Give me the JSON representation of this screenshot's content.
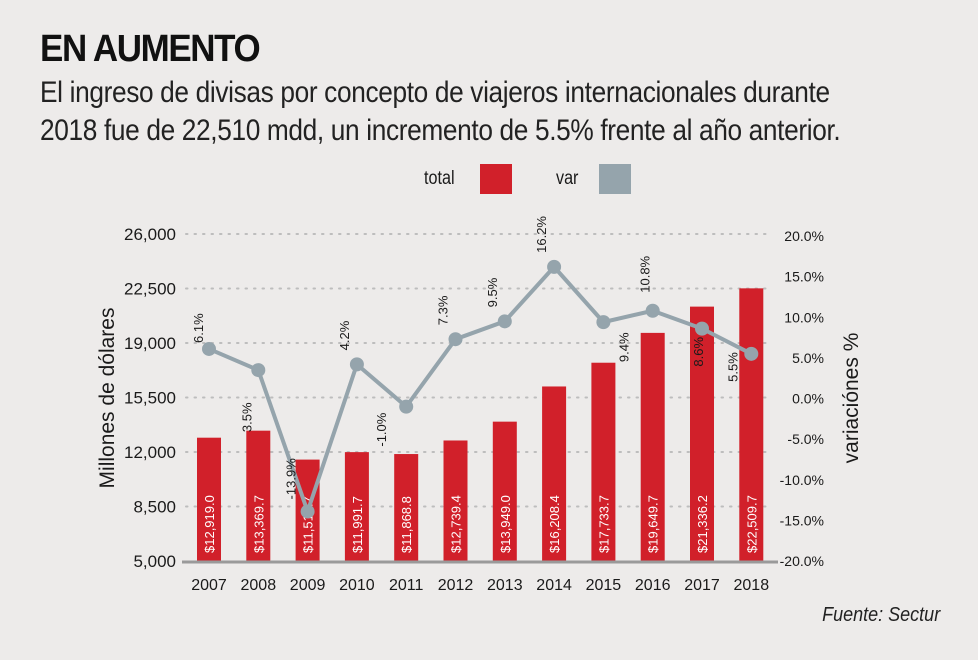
{
  "header": {
    "title": "EN AUMENTO",
    "subtitle_line1": "El ingreso de divisas por concepto de viajeros internacionales durante",
    "subtitle_line2": "2018 fue de 22,510 mdd, un incremento de 5.5% frente al año anterior."
  },
  "legend": {
    "items": [
      {
        "label": "total",
        "color": "#d1202a"
      },
      {
        "label": "var",
        "color": "#95a4ac"
      }
    ]
  },
  "source": "Fuente: Sectur",
  "colors": {
    "bar": "#d1202a",
    "line": "#95a4ac",
    "grid": "#bdbdbd",
    "baseline": "#9a9a9a",
    "bar_label": "#ffffff",
    "text": "#1a1a1a"
  },
  "chart_data": {
    "type": "bar",
    "title": "EN AUMENTO",
    "xlabel": "",
    "ylabel": "Millones de dólares",
    "y2label": "variaciónes %",
    "categories": [
      "2007",
      "2008",
      "2009",
      "2010",
      "2011",
      "2012",
      "2013",
      "2014",
      "2015",
      "2016",
      "2017",
      "2018"
    ],
    "ylim": [
      5000,
      26000
    ],
    "yticks": [
      5000,
      8500,
      12000,
      15500,
      19000,
      22500,
      26000
    ],
    "ytick_labels": [
      "5,000",
      "8,500",
      "12,000",
      "15,500",
      "19,000",
      "22,500",
      "26,000"
    ],
    "y2lim": [
      -20,
      20
    ],
    "y2ticks": [
      -20,
      -15,
      -10,
      -5,
      0,
      5,
      10,
      15,
      20
    ],
    "y2tick_labels": [
      "-20.0%",
      "-15.0%",
      "-10.0%",
      "-5.0%",
      "0.0%",
      "5.0%",
      "10.0%",
      "15.0%",
      "20.0%"
    ],
    "grid": true,
    "legend_position": "top-center",
    "series": [
      {
        "name": "total",
        "type": "bar",
        "axis": "left",
        "values": [
          12919.0,
          13369.7,
          11512.7,
          11991.7,
          11868.8,
          12739.4,
          13949.0,
          16208.4,
          17733.7,
          19649.7,
          21336.2,
          22509.7
        ],
        "labels": [
          "$12,919.0",
          "$13,369.7",
          "$11,512.7",
          "$11,991.7",
          "$11,868.8",
          "$12,739.4",
          "$13,949.0",
          "$16,208.4",
          "$17,733.7",
          "$19,649.7",
          "$21,336.2",
          "$22,509.7"
        ]
      },
      {
        "name": "var",
        "type": "line",
        "axis": "right",
        "values": [
          6.1,
          3.5,
          -13.9,
          4.2,
          -1.0,
          7.3,
          9.5,
          16.2,
          9.4,
          10.8,
          8.6,
          5.5
        ],
        "labels": [
          "6.1%",
          "3.5%",
          "-13.9%",
          "4.2%",
          "-1.0%",
          "7.3%",
          "9.5%",
          "16.2%",
          "9.4%",
          "10.8%",
          "8.6%",
          "5.5%"
        ],
        "label_side": [
          "left",
          "below",
          "left",
          "left",
          "right",
          "left",
          "left",
          "left",
          "below",
          "right",
          "left",
          "left"
        ]
      }
    ]
  }
}
